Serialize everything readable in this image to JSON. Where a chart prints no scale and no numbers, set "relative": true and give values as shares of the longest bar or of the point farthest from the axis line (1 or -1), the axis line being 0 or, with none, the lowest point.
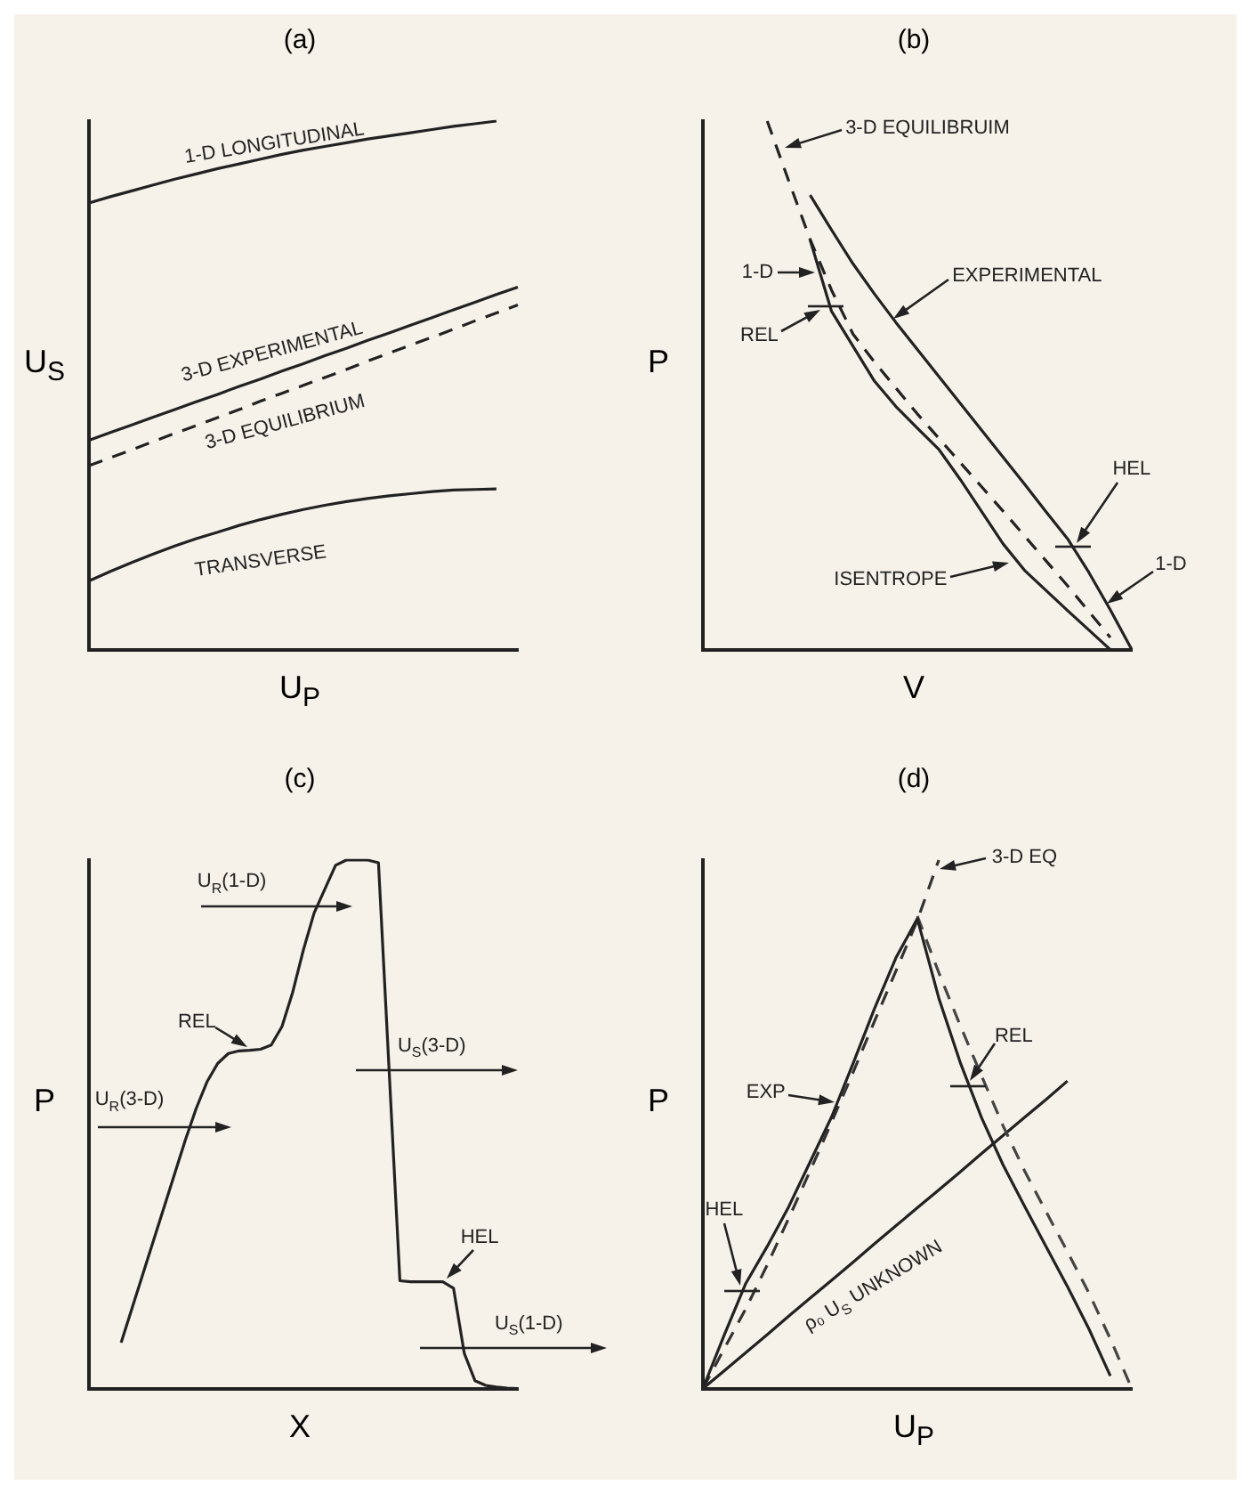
{
  "chart_data": [
    {
      "type": "line",
      "title": "(a)",
      "xlabel": "U$_{P}$",
      "ylabel": "U$_{S}$",
      "relative": true,
      "marker": "none",
      "categories": [
        null,
        null,
        null,
        null,
        null,
        null,
        null,
        null,
        null,
        null,
        null,
        null,
        null,
        null,
        null,
        null,
        null,
        null,
        null,
        null,
        null
      ],
      "series": [
        {
          "color": "#222222",
          "values": [
            0.845,
            0.857,
            0.868,
            0.879,
            0.89,
            0.9,
            0.91,
            0.919,
            0.928,
            0.937,
            0.945,
            0.952,
            0.959,
            0.966,
            0.972,
            0.978,
            0.984,
            0.99,
            0.995,
            1,
            null
          ]
        },
        {
          "color": "#222222",
          "values": [
            0.396,
            0.411,
            0.425,
            0.44,
            0.454,
            0.469,
            0.483,
            0.498,
            0.512,
            0.527,
            0.541,
            0.556,
            0.57,
            0.585,
            0.599,
            0.614,
            0.628,
            0.643,
            0.657,
            0.672,
            0.686
          ]
        },
        {
          "color": "#222222",
          "line_style": "dashed",
          "values": [
            0.348,
            0.363,
            0.378,
            0.394,
            0.409,
            0.424,
            0.439,
            0.454,
            0.47,
            0.485,
            0.5,
            0.515,
            0.53,
            0.546,
            0.561,
            0.576,
            0.591,
            0.606,
            0.622,
            0.637,
            0.652
          ]
        },
        {
          "color": "#222222",
          "values": [
            0.13,
            0.148,
            0.165,
            0.181,
            0.196,
            0.21,
            0.222,
            0.235,
            0.246,
            0.256,
            0.265,
            0.273,
            0.28,
            0.286,
            0.291,
            0.295,
            0.299,
            0.302,
            0.303,
            0.304,
            null
          ]
        }
      ],
      "annotations": [
        "1-D LONGITUDINAL",
        "3-D EXPERIMENTAL",
        "3-D EQUILIBRIUM",
        "TRANSVERSE"
      ]
    },
    {
      "type": "line",
      "title": "(b)",
      "xlabel": "V",
      "ylabel": "P",
      "relative": true,
      "marker": "none",
      "categories": [
        null,
        null,
        null,
        null,
        null,
        null,
        null,
        null,
        null,
        null,
        null,
        null,
        null,
        null,
        null,
        null,
        null,
        null,
        null,
        null,
        null
      ],
      "series": [
        {
          "color": "#222222",
          "line_style": "dashed",
          "values": [
            null,
            null,
            null,
            1,
            0.887,
            0.776,
            0.68,
            0.597,
            0.544,
            0.495,
            0.446,
            0.4,
            0.354,
            0.308,
            0.262,
            0.215,
            0.168,
            0.121,
            0.072,
            0.023,
            null
          ]
        },
        {
          "color": "#222222",
          "values": [
            null,
            null,
            null,
            null,
            null,
            0.86,
            0.794,
            0.73,
            0.673,
            0.619,
            0.568,
            0.517,
            0.466,
            0.415,
            0.364,
            0.313,
            0.261,
            0.21,
            0.146,
            0.075,
            0
          ]
        },
        {
          "color": "#222222",
          "values": [
            null,
            null,
            null,
            null,
            null,
            0.775,
            0.64,
            0.574,
            0.508,
            0.46,
            0.419,
            0.379,
            0.322,
            0.261,
            0.2,
            0.15,
            0.112,
            0.074,
            0.037,
            0,
            null
          ]
        }
      ],
      "annotations": [
        "3-D EQUILIBRUIM",
        "1-D",
        "REL",
        "EXPERIMENTAL",
        "HEL",
        "ISENTROPE",
        "1-D"
      ]
    },
    {
      "type": "line",
      "title": "(c)",
      "xlabel": "X",
      "ylabel": "P",
      "relative": true,
      "marker": "none",
      "categories": [
        null,
        null,
        null,
        null,
        null,
        null,
        null,
        null,
        null,
        null,
        null,
        null,
        null,
        null,
        null,
        null,
        null,
        null,
        null,
        null,
        null,
        null,
        null,
        null,
        null,
        null,
        null,
        null,
        null,
        null,
        null,
        null,
        null,
        null,
        null,
        null,
        null,
        null,
        null,
        null,
        null
      ],
      "series": [
        {
          "color": "#222222",
          "values": [
            null,
            null,
            null,
            0.087,
            0.151,
            0.215,
            0.279,
            0.343,
            0.407,
            0.471,
            0.53,
            0.58,
            0.615,
            0.634,
            0.639,
            0.64,
            0.642,
            0.65,
            0.685,
            0.75,
            0.83,
            0.9,
            0.945,
            0.99,
            1,
            1,
            1,
            0.995,
            0.6,
            0.204,
            0.202,
            0.202,
            0.202,
            0.202,
            0.19,
            0.067,
            0.015,
            0.006,
            0.003,
            0.001,
            0
          ]
        }
      ],
      "annotations": [
        "U$_{R}$(3-D)",
        "U$_{R}$(1-D)",
        "U$_{S}$(3-D)",
        "U$_{S}$(1-D)",
        "REL",
        "HEL"
      ]
    },
    {
      "type": "line",
      "title": "(d)",
      "xlabel": "U$_{P}$",
      "ylabel": "P",
      "relative": true,
      "marker": "none",
      "categories": [
        null,
        null,
        null,
        null,
        null,
        null,
        null,
        null,
        null,
        null,
        null,
        null,
        null,
        null,
        null,
        null,
        null,
        null,
        null,
        null,
        null
      ],
      "series": [
        {
          "color": "#222222",
          "values": [
            0,
            0.102,
            0.199,
            0.269,
            0.344,
            0.429,
            0.514,
            0.615,
            0.719,
            0.815,
            0.889,
            0.739,
            0.617,
            0.512,
            0.423,
            0.345,
            0.269,
            0.193,
            0.113,
            0.024,
            null
          ]
        },
        {
          "color": "#333333",
          "line_style": "dashed",
          "values": [
            0,
            0.076,
            0.151,
            0.234,
            0.322,
            0.412,
            0.504,
            0.598,
            0.695,
            0.79,
            0.886,
            1,
            null,
            null,
            null,
            null,
            null,
            null,
            null,
            null,
            null
          ]
        },
        {
          "color": "#444444",
          "line_style": "dashed",
          "values": [
            null,
            null,
            null,
            null,
            null,
            null,
            null,
            null,
            null,
            null,
            0.894,
            0.787,
            0.687,
            0.591,
            0.497,
            0.412,
            0.335,
            0.259,
            0.181,
            0.094,
            0
          ]
        },
        {
          "color": "#222222",
          "values": [
            0,
            0.034,
            0.068,
            0.102,
            0.137,
            0.171,
            0.205,
            0.239,
            0.274,
            0.308,
            0.342,
            0.376,
            0.41,
            0.445,
            0.479,
            0.513,
            0.547,
            0.582,
            null,
            null,
            null
          ]
        }
      ],
      "annotations": [
        "3-D EQ",
        "EXP",
        "HEL",
        "REL",
        "ρ₀ U$_{S}$ UNKNOWN"
      ]
    }
  ]
}
